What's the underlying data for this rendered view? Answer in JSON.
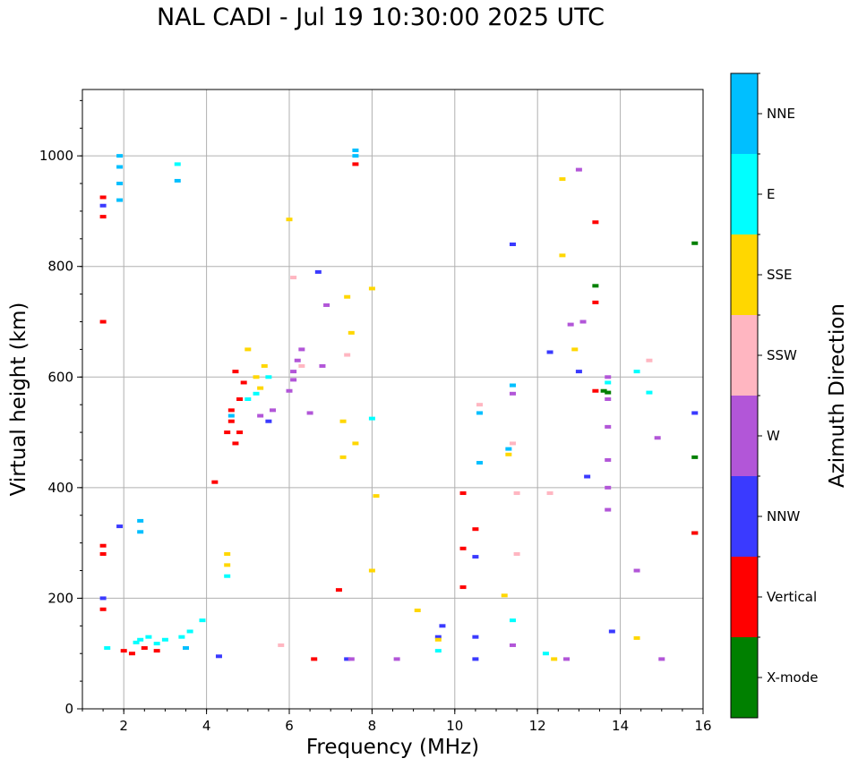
{
  "title": "NAL CADI - Jul 19 10:30:00 2025 UTC",
  "chart_data": {
    "type": "scatter",
    "title": "NAL CADI - Jul 19 10:30:00 2025 UTC",
    "xlabel": "Frequency (MHz)",
    "ylabel": "Virtual height (km)",
    "xlim": [
      1,
      16
    ],
    "ylim": [
      0,
      1120
    ],
    "xticks": [
      2,
      4,
      6,
      8,
      10,
      12,
      14,
      16
    ],
    "yticks": [
      0,
      200,
      400,
      600,
      800,
      1000
    ],
    "grid": true,
    "colorbar": {
      "label": "Azimuth Direction",
      "categories": [
        "X-mode",
        "Vertical",
        "NNW",
        "W",
        "SSW",
        "SSE",
        "E",
        "NNE"
      ],
      "colors": [
        "#008000",
        "#ff0000",
        "#3a3aff",
        "#b256d8",
        "#ffb6c1",
        "#ffd700",
        "#00ffff",
        "#00bfff"
      ]
    },
    "series": [
      {
        "name": "X-mode",
        "color": "#008000",
        "points": [
          [
            13.6,
            575
          ],
          [
            13.4,
            765
          ],
          [
            15.8,
            842
          ],
          [
            15.8,
            455
          ],
          [
            15.8,
            318
          ],
          [
            13.7,
            572
          ]
        ]
      },
      {
        "name": "Vertical",
        "color": "#ff0000",
        "points": [
          [
            1.5,
            925
          ],
          [
            1.5,
            890
          ],
          [
            1.5,
            700
          ],
          [
            1.5,
            295
          ],
          [
            1.5,
            280
          ],
          [
            1.5,
            180
          ],
          [
            4.2,
            410
          ],
          [
            4.6,
            520
          ],
          [
            4.7,
            480
          ],
          [
            4.8,
            560
          ],
          [
            4.5,
            500
          ],
          [
            4.9,
            590
          ],
          [
            4.6,
            540
          ],
          [
            4.7,
            610
          ],
          [
            4.8,
            500
          ],
          [
            2.0,
            105
          ],
          [
            2.5,
            110
          ],
          [
            2.2,
            100
          ],
          [
            2.8,
            105
          ],
          [
            6.6,
            90
          ],
          [
            7.2,
            215
          ],
          [
            10.2,
            390
          ],
          [
            10.2,
            290
          ],
          [
            10.2,
            220
          ],
          [
            10.5,
            325
          ],
          [
            13.4,
            880
          ],
          [
            13.4,
            735
          ],
          [
            13.4,
            575
          ],
          [
            7.6,
            985
          ],
          [
            15.8,
            318
          ]
        ]
      },
      {
        "name": "NNW",
        "color": "#3a3aff",
        "points": [
          [
            1.5,
            910
          ],
          [
            1.5,
            200
          ],
          [
            1.9,
            330
          ],
          [
            4.3,
            95
          ],
          [
            6.7,
            790
          ],
          [
            9.7,
            150
          ],
          [
            9.6,
            130
          ],
          [
            10.5,
            130
          ],
          [
            10.5,
            275
          ],
          [
            10.5,
            90
          ],
          [
            11.4,
            840
          ],
          [
            13.0,
            610
          ],
          [
            13.2,
            420
          ],
          [
            13.8,
            140
          ],
          [
            15.8,
            535
          ],
          [
            12.3,
            645
          ],
          [
            7.4,
            90
          ],
          [
            5.5,
            520
          ]
        ]
      },
      {
        "name": "W",
        "color": "#b256d8",
        "points": [
          [
            6.1,
            595
          ],
          [
            6.0,
            575
          ],
          [
            6.1,
            610
          ],
          [
            6.2,
            630
          ],
          [
            6.3,
            650
          ],
          [
            6.5,
            535
          ],
          [
            6.8,
            620
          ],
          [
            6.9,
            730
          ],
          [
            7.5,
            90
          ],
          [
            8.6,
            90
          ],
          [
            11.4,
            115
          ],
          [
            11.4,
            570
          ],
          [
            12.7,
            90
          ],
          [
            12.8,
            695
          ],
          [
            13.1,
            700
          ],
          [
            13.0,
            975
          ],
          [
            13.7,
            560
          ],
          [
            13.7,
            510
          ],
          [
            13.7,
            450
          ],
          [
            13.7,
            400
          ],
          [
            13.7,
            360
          ],
          [
            13.7,
            600
          ],
          [
            14.4,
            250
          ],
          [
            14.9,
            490
          ],
          [
            15.0,
            90
          ],
          [
            5.3,
            530
          ],
          [
            5.6,
            540
          ]
        ]
      },
      {
        "name": "SSW",
        "color": "#ffb6c1",
        "points": [
          [
            5.8,
            115
          ],
          [
            6.1,
            780
          ],
          [
            7.4,
            640
          ],
          [
            11.5,
            390
          ],
          [
            11.5,
            280
          ],
          [
            11.4,
            480
          ],
          [
            12.3,
            390
          ],
          [
            14.7,
            630
          ],
          [
            10.6,
            550
          ],
          [
            6.3,
            620
          ]
        ]
      },
      {
        "name": "SSE",
        "color": "#ffd700",
        "points": [
          [
            4.5,
            280
          ],
          [
            4.5,
            260
          ],
          [
            5.0,
            650
          ],
          [
            5.2,
            600
          ],
          [
            5.3,
            580
          ],
          [
            5.4,
            620
          ],
          [
            6.0,
            885
          ],
          [
            7.4,
            745
          ],
          [
            7.5,
            680
          ],
          [
            7.6,
            480
          ],
          [
            8.0,
            250
          ],
          [
            8.1,
            385
          ],
          [
            8.0,
            760
          ],
          [
            9.1,
            178
          ],
          [
            9.6,
            125
          ],
          [
            11.3,
            460
          ],
          [
            11.2,
            205
          ],
          [
            12.4,
            90
          ],
          [
            12.6,
            820
          ],
          [
            12.6,
            958
          ],
          [
            12.9,
            650
          ],
          [
            14.4,
            128
          ],
          [
            7.3,
            520
          ],
          [
            7.3,
            455
          ]
        ]
      },
      {
        "name": "E",
        "color": "#00ffff",
        "points": [
          [
            2.4,
            125
          ],
          [
            2.6,
            130
          ],
          [
            2.3,
            120
          ],
          [
            2.8,
            118
          ],
          [
            3.0,
            125
          ],
          [
            3.4,
            130
          ],
          [
            3.6,
            140
          ],
          [
            3.9,
            160
          ],
          [
            1.6,
            110
          ],
          [
            3.3,
            985
          ],
          [
            5.0,
            560
          ],
          [
            5.2,
            570
          ],
          [
            5.5,
            600
          ],
          [
            8.0,
            525
          ],
          [
            11.4,
            585
          ],
          [
            11.4,
            160
          ],
          [
            12.2,
            100
          ],
          [
            13.7,
            590
          ],
          [
            14.4,
            610
          ],
          [
            14.7,
            572
          ],
          [
            9.6,
            105
          ],
          [
            4.5,
            240
          ]
        ]
      },
      {
        "name": "NNE",
        "color": "#00bfff",
        "points": [
          [
            1.9,
            1000
          ],
          [
            1.9,
            980
          ],
          [
            1.9,
            950
          ],
          [
            1.9,
            920
          ],
          [
            2.4,
            320
          ],
          [
            2.4,
            340
          ],
          [
            3.3,
            955
          ],
          [
            7.6,
            1010
          ],
          [
            7.6,
            1000
          ],
          [
            10.6,
            535
          ],
          [
            10.6,
            445
          ],
          [
            11.3,
            470
          ],
          [
            11.4,
            585
          ],
          [
            3.5,
            110
          ],
          [
            4.6,
            530
          ]
        ]
      }
    ]
  }
}
